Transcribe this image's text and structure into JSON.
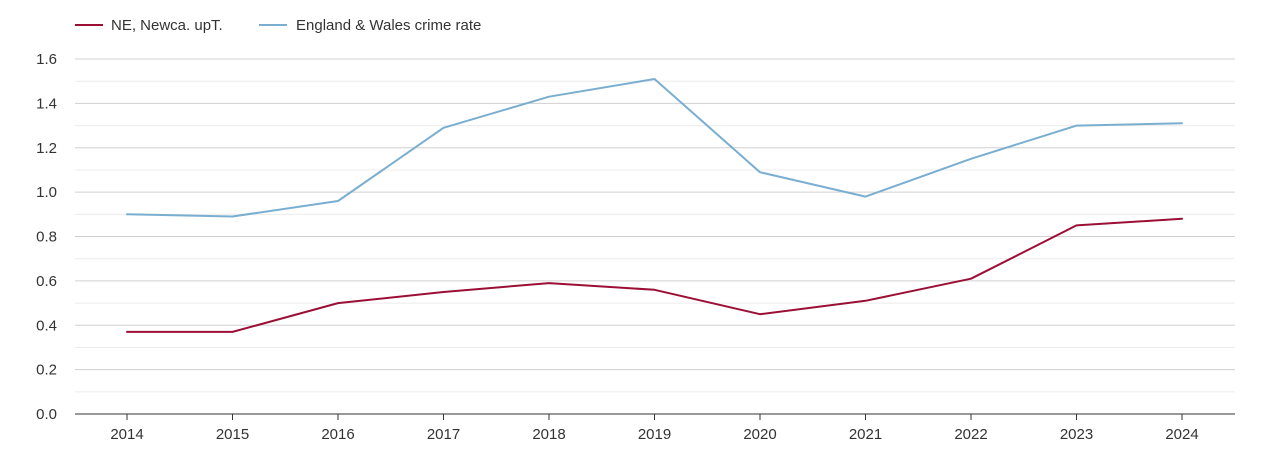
{
  "chart_data": {
    "type": "line",
    "title": "",
    "xlabel": "",
    "ylabel": "",
    "x": [
      "2014",
      "2015",
      "2016",
      "2017",
      "2018",
      "2019",
      "2020",
      "2021",
      "2022",
      "2023",
      "2024"
    ],
    "ylim": [
      0,
      1.6
    ],
    "y_ticks": [
      "0.0",
      "0.2",
      "0.4",
      "0.6",
      "0.8",
      "1.0",
      "1.2",
      "1.4",
      "1.6"
    ],
    "grid": true,
    "legend_position": "top-left",
    "series": [
      {
        "name": "NE, Newca. upT.",
        "color": "#9b0f35",
        "values": [
          0.37,
          0.37,
          0.5,
          0.55,
          0.59,
          0.56,
          0.45,
          0.51,
          0.61,
          0.85,
          0.88
        ]
      },
      {
        "name": "England & Wales crime rate",
        "color": "#7aaed0",
        "values": [
          0.9,
          0.89,
          0.96,
          1.29,
          1.43,
          1.51,
          1.09,
          0.98,
          1.15,
          1.3,
          1.31
        ]
      }
    ]
  }
}
